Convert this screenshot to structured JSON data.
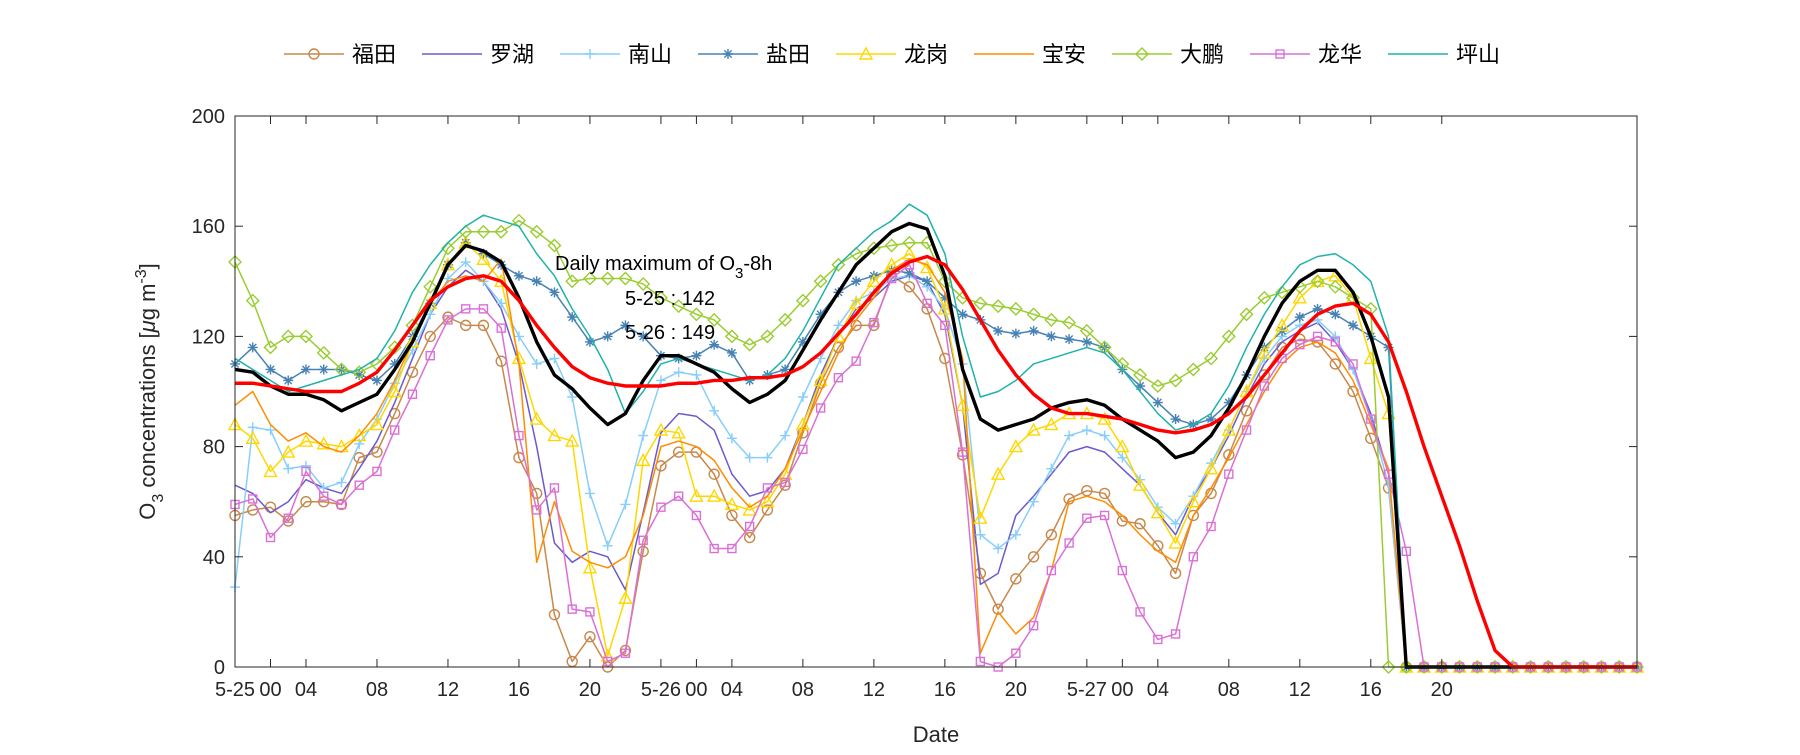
{
  "chart_data": {
    "type": "line",
    "xlabel": "Date",
    "ylabel_main": "O",
    "ylabel_sub": "3",
    "ylabel_rest": " concentrations [",
    "ylabel_mu": "μ",
    "ylabel_unit": "g m",
    "ylabel_sup": "-3",
    "ylabel_close": "]",
    "ylim": [
      0,
      200
    ],
    "y_ticks": [
      0,
      40,
      80,
      120,
      160,
      200
    ],
    "xlim": [
      0,
      79
    ],
    "x_ticks": [
      {
        "pos": 0,
        "label": "5-25"
      },
      {
        "pos": 2,
        "label": "00"
      },
      {
        "pos": 4,
        "label": "04"
      },
      {
        "pos": 8,
        "label": "08"
      },
      {
        "pos": 12,
        "label": "12"
      },
      {
        "pos": 16,
        "label": "16"
      },
      {
        "pos": 20,
        "label": "20"
      },
      {
        "pos": 24,
        "label": "5-26"
      },
      {
        "pos": 26,
        "label": "00"
      },
      {
        "pos": 28,
        "label": "04"
      },
      {
        "pos": 32,
        "label": "08"
      },
      {
        "pos": 36,
        "label": "12"
      },
      {
        "pos": 40,
        "label": "16"
      },
      {
        "pos": 44,
        "label": "20"
      },
      {
        "pos": 48,
        "label": "5-27"
      },
      {
        "pos": 50,
        "label": "00"
      },
      {
        "pos": 52,
        "label": "04"
      },
      {
        "pos": 56,
        "label": "08"
      },
      {
        "pos": 60,
        "label": "12"
      },
      {
        "pos": 64,
        "label": "16"
      },
      {
        "pos": 68,
        "label": "20"
      }
    ],
    "annotation": {
      "title_main": "Daily maximum of O",
      "title_sub": "3",
      "title_rest": "-8h",
      "lines": [
        "5-25 : 142",
        "5-26 : 149"
      ]
    },
    "legend_position": "top",
    "series": [
      {
        "name": "福田",
        "color": "#c8874b",
        "marker": "circle",
        "values": [
          55,
          57,
          58,
          53,
          60,
          60,
          59,
          76,
          78,
          92,
          107,
          120,
          127,
          124,
          124,
          111,
          76,
          63,
          19,
          2,
          11,
          0,
          6,
          42,
          73,
          78,
          78,
          70,
          55,
          47,
          57,
          66,
          85,
          103,
          116,
          124,
          124,
          142,
          138,
          130,
          112,
          77,
          34,
          21,
          32,
          40,
          48,
          61,
          64,
          63,
          53,
          52,
          44,
          34,
          55,
          63,
          77,
          93,
          106,
          116,
          119,
          118,
          110,
          100,
          83,
          65,
          0,
          0,
          0,
          0,
          0,
          0,
          0,
          0,
          0,
          0,
          0,
          0,
          0,
          0
        ]
      },
      {
        "name": "罗湖",
        "color": "#6a5acd",
        "marker": "none",
        "values": [
          66,
          63,
          56,
          60,
          68,
          65,
          63,
          72,
          82,
          96,
          112,
          128,
          138,
          144,
          140,
          130,
          110,
          80,
          45,
          38,
          42,
          40,
          28,
          56,
          85,
          92,
          91,
          86,
          70,
          62,
          64,
          72,
          88,
          106,
          120,
          130,
          134,
          140,
          142,
          140,
          128,
          95,
          30,
          34,
          55,
          62,
          70,
          78,
          80,
          78,
          72,
          66,
          56,
          48,
          62,
          72,
          84,
          98,
          110,
          118,
          122,
          125,
          118,
          108,
          92,
          70,
          0,
          0,
          0,
          0,
          0,
          0,
          0,
          0,
          0,
          0,
          0,
          0,
          0,
          0
        ]
      },
      {
        "name": "南山",
        "color": "#87cefa",
        "marker": "plus",
        "values": [
          29,
          87,
          86,
          72,
          73,
          65,
          67,
          81,
          90,
          103,
          115,
          128,
          141,
          147,
          140,
          132,
          120,
          110,
          112,
          98,
          63,
          44,
          59,
          84,
          104,
          107,
          106,
          93,
          83,
          76,
          76,
          84,
          98,
          112,
          124,
          133,
          136,
          141,
          142,
          138,
          130,
          110,
          48,
          43,
          48,
          60,
          72,
          84,
          86,
          84,
          76,
          68,
          58,
          52,
          62,
          74,
          86,
          100,
          112,
          120,
          124,
          126,
          120,
          108,
          90,
          66,
          0,
          0,
          0,
          0,
          0,
          0,
          0,
          0,
          0,
          0,
          0,
          0,
          0,
          0
        ]
      },
      {
        "name": "盐田",
        "color": "#4682b4",
        "marker": "asterisk",
        "values": [
          110,
          116,
          108,
          104,
          108,
          108,
          108,
          106,
          104,
          110,
          120,
          132,
          146,
          154,
          150,
          146,
          142,
          140,
          136,
          127,
          118,
          120,
          124,
          120,
          113,
          112,
          113,
          117,
          114,
          104,
          106,
          108,
          118,
          128,
          136,
          140,
          142,
          144,
          143,
          140,
          134,
          128,
          126,
          122,
          121,
          122,
          120,
          119,
          118,
          116,
          108,
          102,
          96,
          90,
          88,
          90,
          96,
          106,
          116,
          122,
          127,
          130,
          128,
          124,
          120,
          116,
          0,
          0,
          0,
          0,
          0,
          0,
          0,
          0,
          0,
          0,
          0,
          0,
          0,
          0
        ]
      },
      {
        "name": "龙岗",
        "color": "#ffd700",
        "marker": "triangle",
        "values": [
          88,
          83,
          71,
          78,
          82,
          81,
          80,
          84,
          88,
          100,
          118,
          132,
          146,
          154,
          148,
          140,
          112,
          90,
          84,
          82,
          36,
          4,
          25,
          75,
          86,
          85,
          62,
          62,
          59,
          57,
          60,
          70,
          88,
          104,
          120,
          132,
          140,
          146,
          150,
          145,
          130,
          95,
          54,
          70,
          80,
          86,
          88,
          92,
          92,
          90,
          80,
          66,
          56,
          45,
          60,
          72,
          86,
          100,
          114,
          124,
          134,
          140,
          142,
          134,
          112,
          92,
          0,
          0,
          0,
          0,
          0,
          0,
          0,
          0,
          0,
          0,
          0,
          0,
          0,
          0
        ]
      },
      {
        "name": "宝安",
        "color": "#ff8c00",
        "marker": "none",
        "values": [
          95,
          100,
          88,
          82,
          85,
          80,
          78,
          84,
          92,
          104,
          118,
          132,
          140,
          142,
          140,
          148,
          110,
          38,
          60,
          42,
          38,
          36,
          40,
          55,
          80,
          82,
          80,
          75,
          65,
          58,
          62,
          72,
          86,
          100,
          114,
          126,
          134,
          144,
          148,
          146,
          136,
          112,
          5,
          20,
          12,
          18,
          35,
          60,
          62,
          60,
          55,
          48,
          42,
          38,
          55,
          65,
          76,
          88,
          100,
          110,
          116,
          118,
          114,
          104,
          88,
          72,
          0,
          0,
          0,
          0,
          0,
          0,
          0,
          0,
          0,
          0,
          0,
          0,
          0,
          0
        ]
      },
      {
        "name": "大鹏",
        "color": "#9acd32",
        "marker": "diamond",
        "values": [
          147,
          133,
          116,
          120,
          120,
          114,
          108,
          107,
          110,
          116,
          124,
          138,
          152,
          158,
          158,
          158,
          162,
          158,
          153,
          140,
          141,
          141,
          141,
          139,
          134,
          131,
          128,
          126,
          120,
          117,
          120,
          126,
          133,
          140,
          146,
          150,
          152,
          153,
          154,
          154,
          140,
          134,
          132,
          131,
          130,
          128,
          126,
          125,
          122,
          116,
          110,
          106,
          102,
          104,
          108,
          112,
          120,
          128,
          134,
          136,
          138,
          140,
          138,
          134,
          130,
          0,
          0,
          0,
          0,
          0,
          0,
          0,
          0,
          0,
          0,
          0,
          0,
          0,
          0,
          0
        ]
      },
      {
        "name": "龙华",
        "color": "#da70d6",
        "marker": "square",
        "values": [
          59,
          61,
          47,
          54,
          71,
          62,
          59,
          66,
          71,
          86,
          99,
          113,
          126,
          130,
          130,
          123,
          84,
          57,
          65,
          21,
          20,
          2,
          5,
          46,
          58,
          62,
          55,
          43,
          43,
          51,
          65,
          67,
          79,
          94,
          105,
          111,
          125,
          141,
          146,
          132,
          124,
          78,
          2,
          0,
          5,
          15,
          35,
          45,
          54,
          55,
          35,
          20,
          10,
          12,
          40,
          51,
          70,
          86,
          102,
          112,
          117,
          120,
          118,
          110,
          90,
          70,
          42,
          0,
          0,
          0,
          0,
          0,
          0,
          0,
          0,
          0,
          0,
          0,
          0,
          0
        ]
      },
      {
        "name": "坪山",
        "color": "#20b2aa",
        "marker": "none",
        "values": [
          112,
          108,
          104,
          100,
          102,
          104,
          106,
          108,
          112,
          122,
          136,
          146,
          154,
          160,
          164,
          162,
          160,
          150,
          142,
          130,
          120,
          108,
          92,
          100,
          110,
          112,
          110,
          108,
          106,
          104,
          106,
          112,
          122,
          134,
          146,
          152,
          158,
          162,
          168,
          164,
          150,
          120,
          98,
          100,
          104,
          110,
          112,
          114,
          116,
          114,
          108,
          100,
          92,
          86,
          88,
          92,
          102,
          116,
          128,
          138,
          146,
          149,
          150,
          146,
          140,
          120,
          0,
          0,
          0,
          0,
          0,
          0,
          0,
          0,
          0,
          0,
          0,
          0,
          0,
          0
        ]
      },
      {
        "name": "",
        "color": "#000000",
        "marker": "none",
        "width": 3.4,
        "values": [
          108,
          107,
          102,
          99,
          99,
          97,
          93,
          96,
          99,
          108,
          118,
          132,
          146,
          153,
          151,
          147,
          134,
          118,
          106,
          101,
          94,
          88,
          92,
          104,
          113,
          113,
          110,
          107,
          101,
          96,
          99,
          104,
          115,
          126,
          136,
          146,
          152,
          158,
          161,
          159,
          142,
          108,
          90,
          86,
          88,
          90,
          94,
          96,
          97,
          95,
          90,
          86,
          82,
          76,
          78,
          84,
          94,
          106,
          120,
          132,
          140,
          144,
          144,
          136,
          120,
          98,
          0,
          0,
          0,
          0,
          0,
          0,
          0,
          0,
          0,
          0,
          0,
          0,
          0,
          0
        ]
      },
      {
        "name": "",
        "color": "#ff0000",
        "marker": "none",
        "width": 3.4,
        "values": [
          103,
          103,
          102,
          101,
          100,
          100,
          100,
          103,
          107,
          115,
          124,
          133,
          138,
          141,
          142,
          140,
          133,
          124,
          116,
          109,
          105,
          103,
          102,
          102,
          102,
          103,
          103,
          104,
          104,
          105,
          105,
          106,
          109,
          114,
          121,
          128,
          136,
          143,
          147,
          149,
          146,
          137,
          126,
          115,
          106,
          99,
          94,
          92,
          92,
          91,
          90,
          88,
          86,
          85,
          86,
          88,
          92,
          98,
          106,
          114,
          122,
          128,
          131,
          132,
          128,
          118,
          100,
          80,
          62,
          44,
          24,
          6,
          0,
          0,
          0,
          0,
          0,
          0,
          0,
          0
        ]
      }
    ]
  }
}
